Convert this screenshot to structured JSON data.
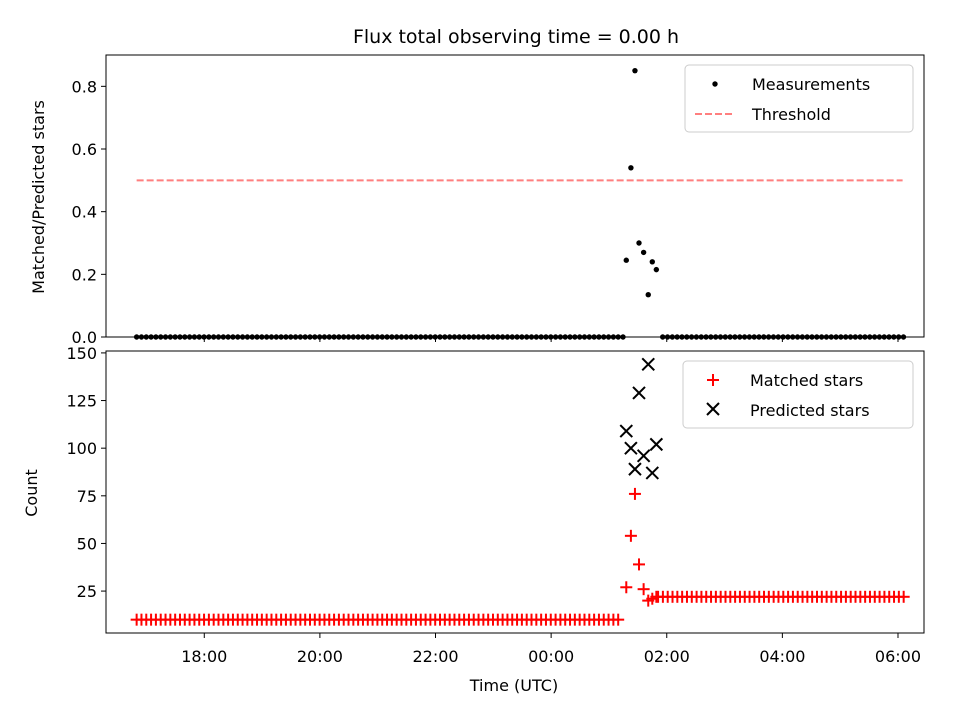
{
  "figure": {
    "title": "Flux total observing time = 0.00 h",
    "xlabel": "Time (UTC)",
    "x_tick_labels": [
      "18:00",
      "20:00",
      "22:00",
      "00:00",
      "02:00",
      "04:00",
      "06:00"
    ]
  },
  "colors": {
    "measurements": "#000000",
    "threshold": "#ff7f7f",
    "matched": "#ff0000",
    "predicted": "#000000"
  },
  "chart_data": [
    {
      "type": "scatter",
      "title": "Flux total observing time = 0.00 h",
      "ylabel": "Matched/Predicted stars",
      "x_unit": "hours since 16:00 UTC",
      "xlim": [
        0.3,
        14.45
      ],
      "ylim": [
        0.0,
        0.9
      ],
      "y_ticks": [
        0.0,
        0.2,
        0.4,
        0.6,
        0.8
      ],
      "legend_position": "top-right",
      "series": [
        {
          "name": "Measurements",
          "kind": "scatter",
          "baseline_value": 0.0,
          "baseline_ranges": [
            [
              0.83,
              9.23
            ],
            [
              9.93,
              14.08
            ]
          ],
          "baseline_step": 0.0833,
          "points": [
            {
              "x": 9.3,
              "y": 0.245
            },
            {
              "x": 9.38,
              "y": 0.54
            },
            {
              "x": 9.45,
              "y": 0.85
            },
            {
              "x": 9.52,
              "y": 0.3
            },
            {
              "x": 9.6,
              "y": 0.27
            },
            {
              "x": 9.68,
              "y": 0.135
            },
            {
              "x": 9.75,
              "y": 0.24
            },
            {
              "x": 9.82,
              "y": 0.215
            }
          ]
        },
        {
          "name": "Threshold",
          "kind": "dashed-line",
          "x": [
            0.83,
            14.08
          ],
          "y": [
            0.5,
            0.5
          ]
        }
      ]
    },
    {
      "type": "scatter",
      "ylabel": "Count",
      "xlabel": "Time (UTC)",
      "x_unit": "hours since 16:00 UTC",
      "xlim": [
        0.3,
        14.45
      ],
      "ylim": [
        3,
        151
      ],
      "y_ticks": [
        25,
        50,
        75,
        100,
        125,
        150
      ],
      "legend_position": "top-right",
      "series": [
        {
          "name": "Matched stars",
          "marker": "plus",
          "baseline_segments": [
            {
              "range": [
                0.83,
                9.15
              ],
              "value": 10
            },
            {
              "range": [
                9.85,
                14.08
              ],
              "value": 22
            }
          ],
          "baseline_step": 0.0833,
          "points": [
            {
              "x": 9.3,
              "y": 27
            },
            {
              "x": 9.38,
              "y": 54
            },
            {
              "x": 9.45,
              "y": 76
            },
            {
              "x": 9.52,
              "y": 39
            },
            {
              "x": 9.6,
              "y": 26
            },
            {
              "x": 9.68,
              "y": 20
            },
            {
              "x": 9.75,
              "y": 21
            },
            {
              "x": 9.82,
              "y": 22
            }
          ]
        },
        {
          "name": "Predicted stars",
          "marker": "x",
          "points": [
            {
              "x": 9.3,
              "y": 109
            },
            {
              "x": 9.38,
              "y": 100
            },
            {
              "x": 9.45,
              "y": 89
            },
            {
              "x": 9.52,
              "y": 129
            },
            {
              "x": 9.6,
              "y": 96
            },
            {
              "x": 9.68,
              "y": 144
            },
            {
              "x": 9.75,
              "y": 87
            },
            {
              "x": 9.82,
              "y": 102
            }
          ]
        }
      ]
    }
  ]
}
